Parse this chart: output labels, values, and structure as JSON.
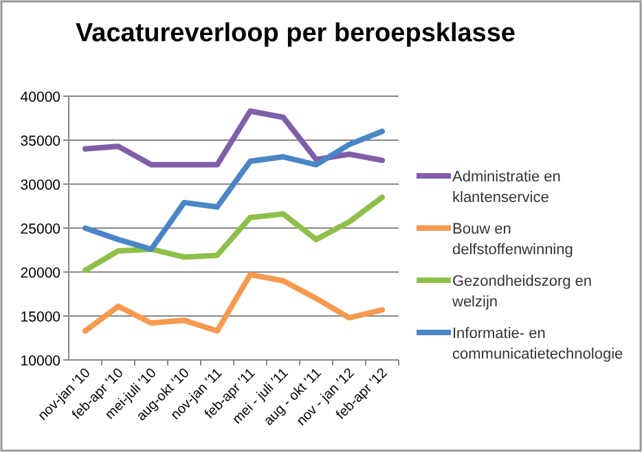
{
  "chart_data": {
    "type": "line",
    "title": "Vacatureverloop per beroepsklasse",
    "categories": [
      "nov-jan '10",
      "feb-apr '10",
      "mei-juli '10",
      "aug-okt '10",
      "nov-jan '11",
      "feb-apr '11",
      "mei - juli '11",
      "aug - okt '11",
      "nov - jan '12",
      "feb-apr '12"
    ],
    "series": [
      {
        "name": "Administratie en klantenservice",
        "color": "#7f5fa8",
        "values": [
          34000,
          34300,
          32200,
          32200,
          32200,
          38300,
          37600,
          32800,
          33400,
          32700
        ]
      },
      {
        "name": "Bouw en delfstoffenwinning",
        "color": "#f59a4f",
        "values": [
          13300,
          16100,
          14200,
          14500,
          13300,
          19700,
          19000,
          17000,
          14800,
          15700
        ]
      },
      {
        "name": "Gezondheidszorg en welzijn",
        "color": "#8fbf4a",
        "values": [
          20200,
          22400,
          22600,
          21700,
          21900,
          26200,
          26600,
          23700,
          25700,
          28500
        ]
      },
      {
        "name": "Informatie- en communicatietechnologie",
        "color": "#4a86c5",
        "values": [
          25000,
          23700,
          22600,
          27900,
          27400,
          32600,
          33100,
          32200,
          34500,
          36000
        ]
      }
    ],
    "ylim": [
      10000,
      40000
    ],
    "yticks": [
      10000,
      15000,
      20000,
      25000,
      30000,
      35000,
      40000
    ],
    "grid": "y",
    "legend": "right",
    "marker": "none",
    "line_style": "solid"
  }
}
